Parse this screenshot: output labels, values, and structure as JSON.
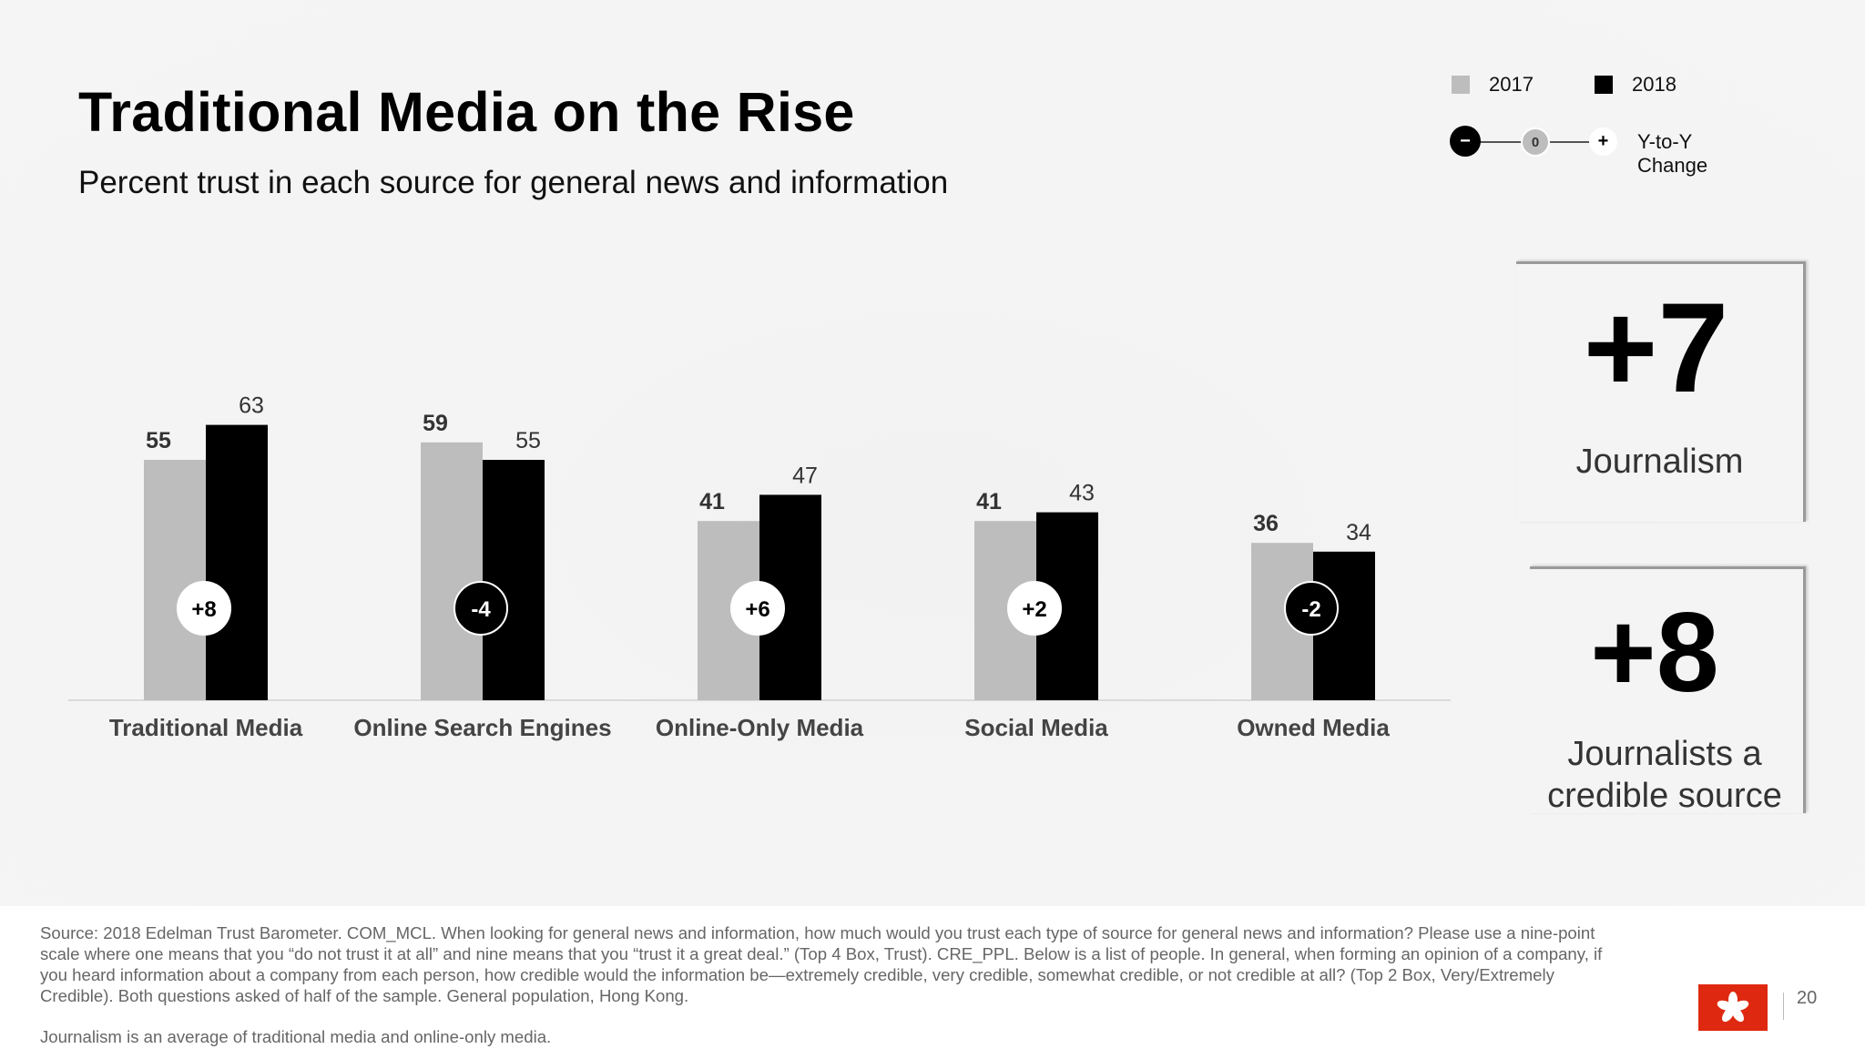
{
  "title": "Traditional Media on the Rise",
  "subtitle": "Percent trust in each source for general news and information",
  "legend": {
    "year1": "2017",
    "year2": "2018",
    "neg_symbol": "−",
    "zero_symbol": "0",
    "pos_symbol": "+",
    "change_label": "Y-to-Y Change"
  },
  "colors": {
    "bar_2017": "#bdbdbd",
    "bar_2018": "#000000",
    "positive_badge": "#ffffff",
    "negative_badge": "#000000",
    "flag_red": "#de2910"
  },
  "chart_data": {
    "type": "bar",
    "title": "Traditional Media on the Rise",
    "subtitle": "Percent trust in each source for general news and information",
    "categories": [
      "Traditional Media",
      "Online Search Engines",
      "Online-Only Media",
      "Social Media",
      "Owned Media"
    ],
    "series": [
      {
        "name": "2017",
        "values": [
          55,
          59,
          41,
          41,
          36
        ]
      },
      {
        "name": "2018",
        "values": [
          63,
          55,
          47,
          43,
          34
        ]
      }
    ],
    "changes": [
      "+8",
      "-4",
      "+6",
      "+2",
      "-2"
    ],
    "ylim": [
      0,
      100
    ],
    "grid": false,
    "legend_position": "top-right"
  },
  "callouts": [
    {
      "value": "+7",
      "label": "Journalism"
    },
    {
      "value": "+8",
      "label_line1": "Journalists a",
      "label_line2": "credible source"
    }
  ],
  "footer": {
    "source": "Source: 2018 Edelman Trust Barometer. COM_MCL. When looking for general news and information, how much would you trust each type of source for general news and information? Please use a nine-point scale where one means that you “do not trust it at all” and nine means that you “trust it a great deal.” (Top 4 Box, Trust). CRE_PPL. Below is a list of people. In general, when forming an opinion of a company, if you heard information about a company from each person, how credible would the information be—extremely credible, very credible, somewhat credible, or not credible at all? (Top 2 Box, Very/Extremely Credible). Both questions asked of half of the sample. General population, Hong Kong.",
    "note": "Journalism is an average of traditional media and online-only media.",
    "page_number": "20"
  }
}
